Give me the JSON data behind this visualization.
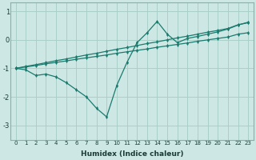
{
  "xlabel": "Humidex (Indice chaleur)",
  "background_color": "#cde8e4",
  "grid_color": "#aacfc9",
  "line_color": "#1a7a6e",
  "xlim": [
    -0.5,
    23.5
  ],
  "ylim": [
    -3.5,
    1.3
  ],
  "xticks": [
    0,
    1,
    2,
    3,
    4,
    5,
    6,
    7,
    8,
    9,
    10,
    11,
    12,
    13,
    14,
    15,
    16,
    17,
    18,
    19,
    20,
    21,
    22,
    23
  ],
  "yticks": [
    -3,
    -2,
    -1,
    0,
    1
  ],
  "series_linear1_x": [
    0,
    1,
    2,
    3,
    4,
    5,
    6,
    7,
    8,
    9,
    10,
    11,
    12,
    13,
    14,
    15,
    16,
    17,
    18,
    19,
    20,
    21,
    22,
    23
  ],
  "series_linear1_y": [
    -1.0,
    -0.93,
    -0.87,
    -0.8,
    -0.73,
    -0.67,
    -0.6,
    -0.53,
    -0.47,
    -0.4,
    -0.33,
    -0.27,
    -0.2,
    -0.13,
    -0.07,
    0.0,
    0.07,
    0.13,
    0.2,
    0.27,
    0.33,
    0.4,
    0.53,
    0.6
  ],
  "series_linear2_x": [
    0,
    1,
    2,
    3,
    4,
    5,
    6,
    7,
    8,
    9,
    10,
    11,
    12,
    13,
    14,
    15,
    16,
    17,
    18,
    19,
    20,
    21,
    22,
    23
  ],
  "series_linear2_y": [
    -1.0,
    -0.95,
    -0.9,
    -0.84,
    -0.79,
    -0.74,
    -0.68,
    -0.63,
    -0.58,
    -0.53,
    -0.47,
    -0.42,
    -0.37,
    -0.32,
    -0.26,
    -0.21,
    -0.16,
    -0.11,
    -0.05,
    0.0,
    0.05,
    0.1,
    0.2,
    0.25
  ],
  "series_vshape_x": [
    0,
    1,
    2,
    3,
    4,
    5,
    6,
    7,
    8,
    9,
    10,
    11,
    12,
    13,
    14,
    15,
    16,
    17,
    18,
    19,
    20,
    21,
    22,
    23
  ],
  "series_vshape_y": [
    -1.0,
    -1.05,
    -1.25,
    -1.2,
    -1.3,
    -1.5,
    -1.75,
    -2.0,
    -2.4,
    -2.7,
    -1.6,
    -0.8,
    -0.1,
    0.25,
    0.65,
    0.2,
    -0.1,
    0.05,
    0.12,
    0.2,
    0.28,
    0.38,
    0.52,
    0.62
  ]
}
